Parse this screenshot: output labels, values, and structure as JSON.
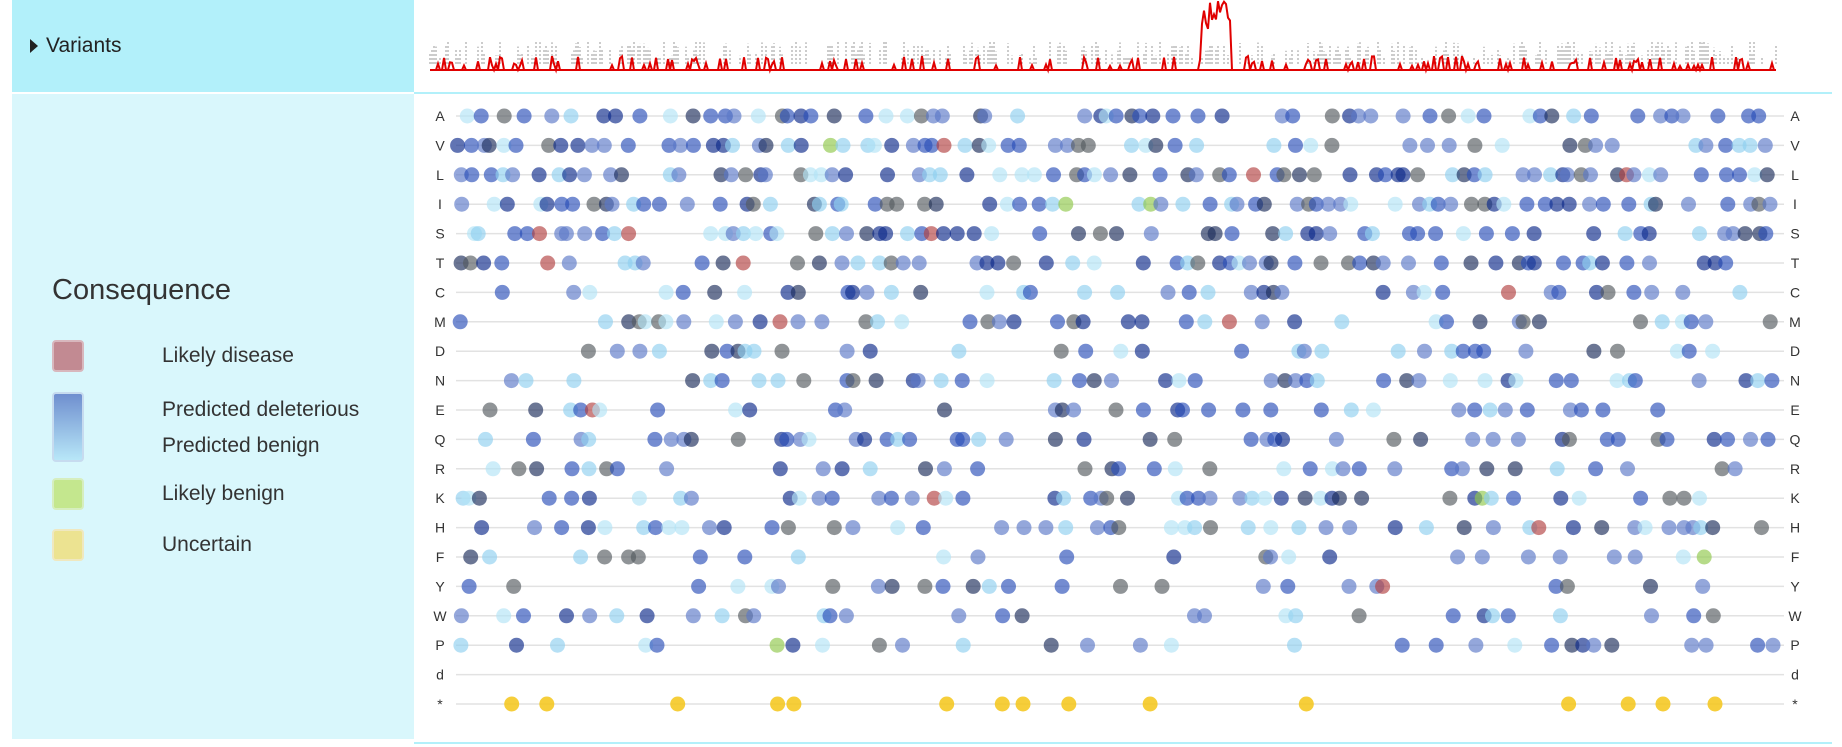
{
  "header": {
    "variants_label": "Variants"
  },
  "legend": {
    "title": "Consequence",
    "items": [
      {
        "label": "Likely disease",
        "color": "#c28a92"
      },
      {
        "label": "Predicted deleterious",
        "color": "#6f8fcf"
      },
      {
        "label": "Predicted benign",
        "color": "#a9e4f6"
      },
      {
        "label": "Likely benign",
        "color": "#c4e78e"
      },
      {
        "label": "Uncertain",
        "color": "#ece391"
      }
    ]
  },
  "chart_data": {
    "type": "scatter",
    "title": "",
    "rows": [
      "A",
      "V",
      "L",
      "I",
      "S",
      "T",
      "C",
      "M",
      "D",
      "N",
      "E",
      "Q",
      "R",
      "K",
      "H",
      "F",
      "Y",
      "W",
      "P",
      "d",
      "*"
    ],
    "x_range": [
      1,
      1300
    ],
    "colors": {
      "likely_disease": "#b24141",
      "predicted_deleterious": [
        "#0d2a8a",
        "#2a4fb8",
        "#5a78c8",
        "#1b2d5a"
      ],
      "predicted_benign": [
        "#8fd0f0",
        "#b2e4f6"
      ],
      "likely_benign": "#8fc84a",
      "uncertain": "#f5c518",
      "other": "#555a60"
    },
    "density_line_color": "#e00000",
    "density_bar_color": "#9a9a9a"
  }
}
